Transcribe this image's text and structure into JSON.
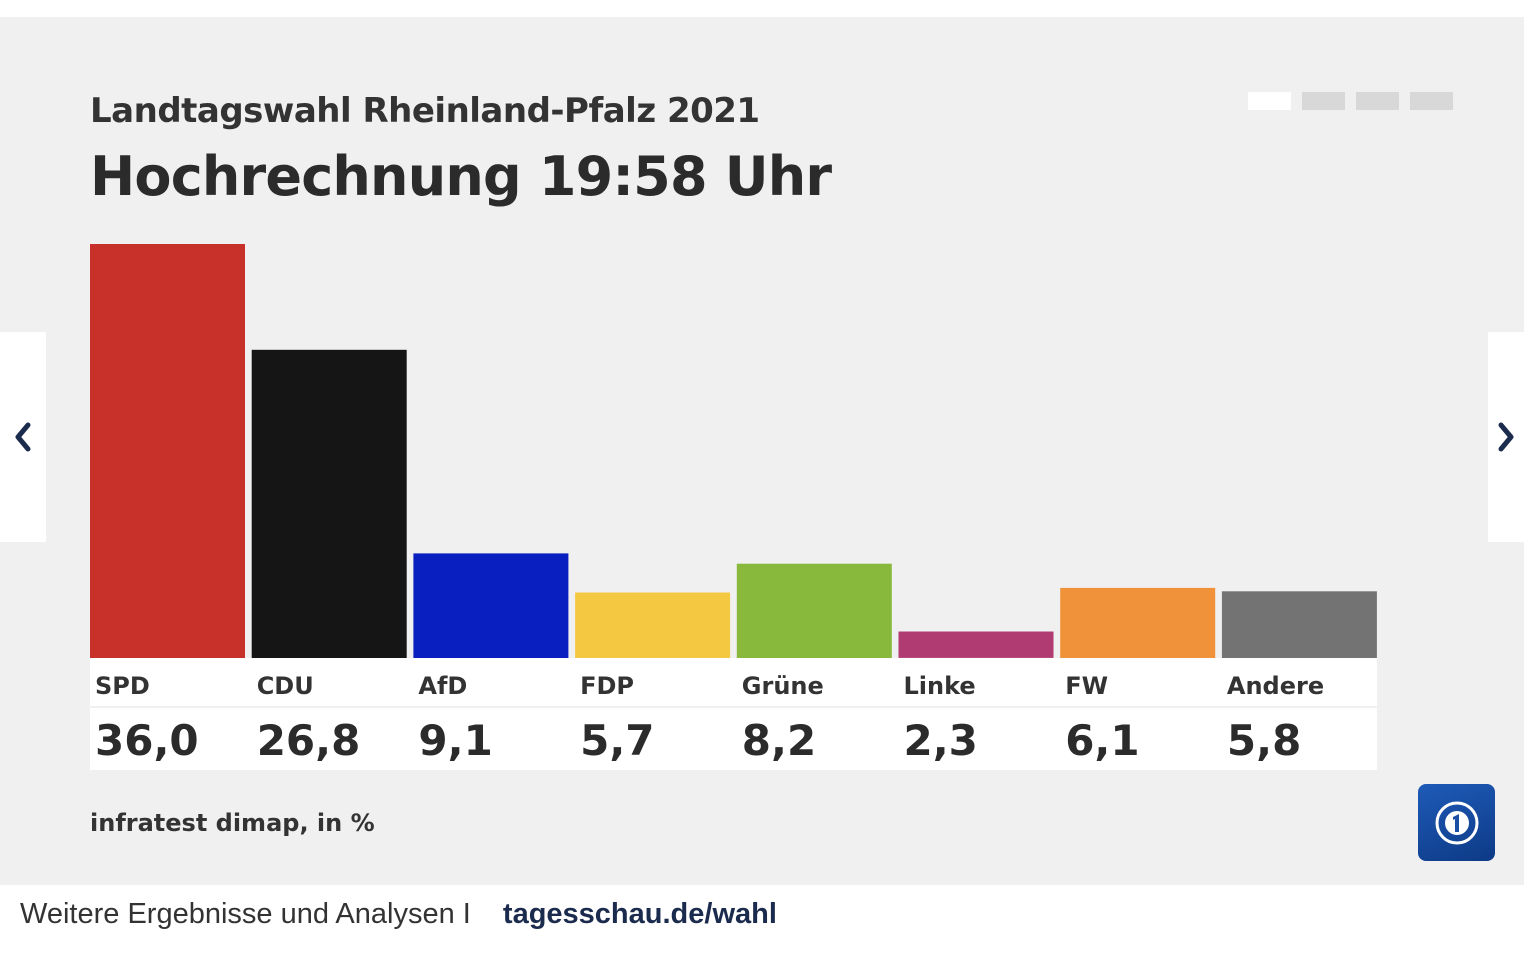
{
  "header": {
    "subtitle": "Landtagswahl Rheinland-Pfalz 2021",
    "title": "Hochrechnung 19:58 Uhr"
  },
  "pager": {
    "dots": [
      {
        "active": true,
        "color": "#ffffff"
      },
      {
        "active": false,
        "color": "#d8d8d8"
      },
      {
        "active": false,
        "color": "#d8d8d8"
      },
      {
        "active": false,
        "color": "#d8d8d8"
      }
    ]
  },
  "nav": {
    "prev_icon": "chevron-left-icon",
    "next_icon": "chevron-right-icon",
    "icon_color": "#1b2b4d"
  },
  "chart_data": {
    "type": "bar",
    "title": "Hochrechnung 19:58 Uhr",
    "categories": [
      "SPD",
      "CDU",
      "AfD",
      "FDP",
      "Grüne",
      "Linke",
      "FW",
      "Andere"
    ],
    "values": [
      36.0,
      26.8,
      9.1,
      5.7,
      8.2,
      2.3,
      6.1,
      5.8
    ],
    "value_labels": [
      "36,0",
      "26,8",
      "9,1",
      "5,7",
      "8,2",
      "2,3",
      "6,1",
      "5,8"
    ],
    "colors": [
      "#c8312a",
      "#151515",
      "#0a1fbf",
      "#f5c842",
      "#88b93c",
      "#b03a72",
      "#f0923a",
      "#737373"
    ],
    "ylim": [
      0,
      36.0
    ],
    "grid": false,
    "legend": "none"
  },
  "source": "infratest dimap, in %",
  "logo": {
    "name": "tagesschau-logo-icon"
  },
  "footer": {
    "text": "Weitere Ergebnisse und Analysen I",
    "link": "tagesschau.de/wahl"
  }
}
